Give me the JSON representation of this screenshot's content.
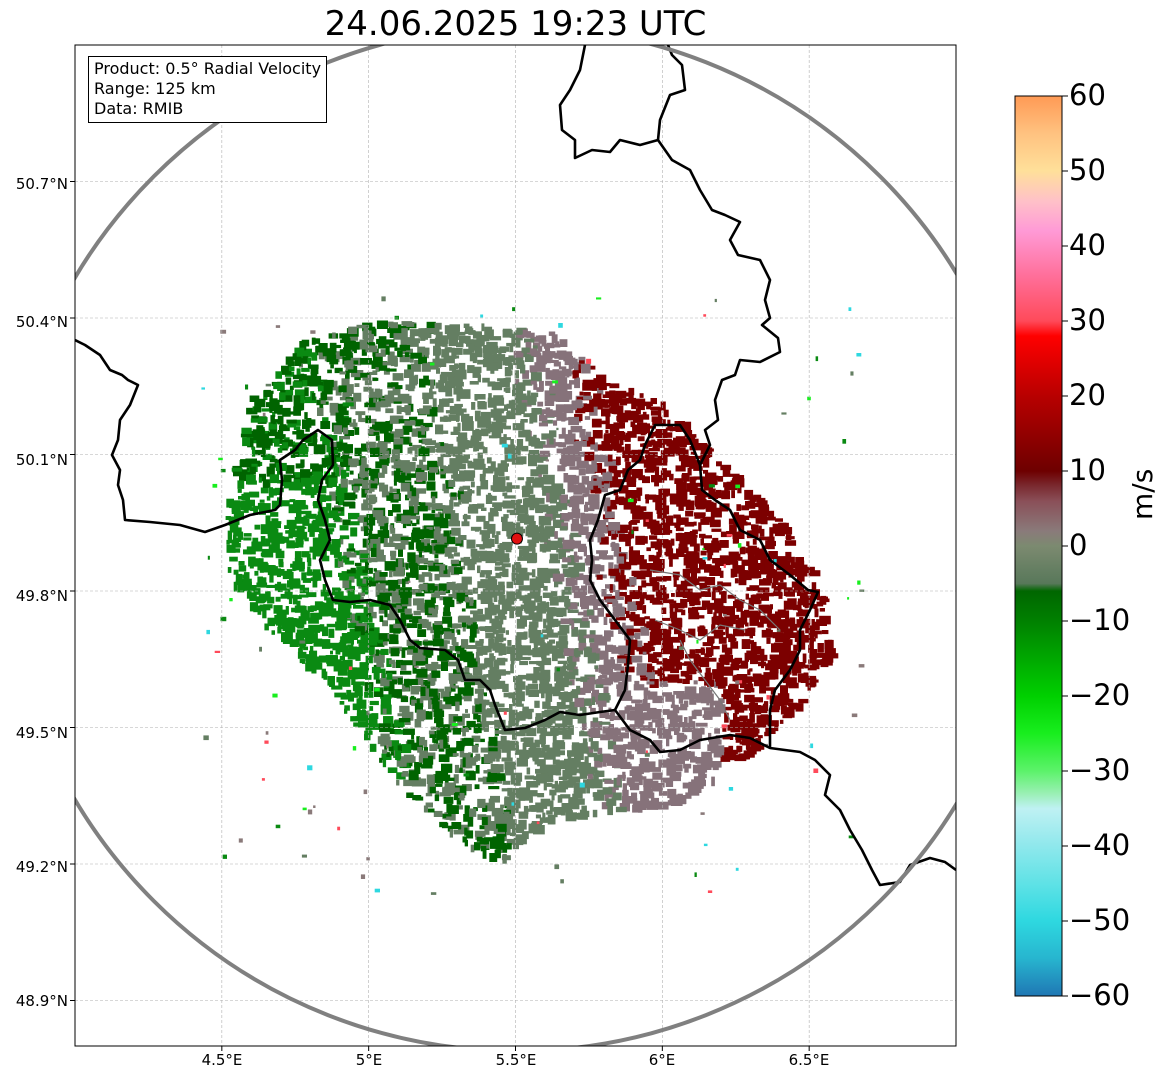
{
  "title": "24.06.2025 19:23 UTC",
  "info_box": {
    "product": "Product: 0.5° Radial Velocity",
    "range": "Range: 125 km",
    "data": "Data: RMIB"
  },
  "map": {
    "lon_range": [
      4.0,
      7.0
    ],
    "lat_range": [
      48.8,
      51.0
    ],
    "radar_site": {
      "lon": 5.505,
      "lat": 49.915
    },
    "range_ring_km": 125,
    "lat_ticks": [
      "50.7°N",
      "50.4°N",
      "50.1°N",
      "49.8°N",
      "49.5°N",
      "49.2°N",
      "48.9°N"
    ],
    "lon_ticks": [
      "4.5°E",
      "5°E",
      "5.5°E",
      "6°E",
      "6.5°E"
    ],
    "grid": true
  },
  "velocity_regions": [
    {
      "name": "inbound-strong",
      "color": "#0a8a12"
    },
    {
      "name": "inbound-weak",
      "color": "#006400"
    },
    {
      "name": "near-zero-inbound",
      "color": "#647e62"
    },
    {
      "name": "near-zero-outbound",
      "color": "#86727a"
    },
    {
      "name": "outbound",
      "color": "#7c0000"
    }
  ],
  "colorbar": {
    "label": "m/s",
    "ticks": [
      "60",
      "50",
      "40",
      "30",
      "20",
      "10",
      "0",
      "−10",
      "−20",
      "−30",
      "−40",
      "−50",
      "−60"
    ],
    "range": [
      -60,
      60
    ],
    "stops": [
      {
        "v": -60,
        "color": "#1f77b4"
      },
      {
        "v": -55,
        "color": "#27b5cf"
      },
      {
        "v": -50,
        "color": "#2ed8e0"
      },
      {
        "v": -45,
        "color": "#5fe2e6"
      },
      {
        "v": -40,
        "color": "#8fe8ec"
      },
      {
        "v": -35,
        "color": "#bff1f3"
      },
      {
        "v": -33,
        "color": "#9af0b4"
      },
      {
        "v": -30,
        "color": "#5cf26a"
      },
      {
        "v": -25,
        "color": "#18ee1e"
      },
      {
        "v": -20,
        "color": "#00d000"
      },
      {
        "v": -15,
        "color": "#00a800"
      },
      {
        "v": -10,
        "color": "#008000"
      },
      {
        "v": -6,
        "color": "#006600"
      },
      {
        "v": -5,
        "color": "#58785a"
      },
      {
        "v": 0,
        "color": "#7c8a70"
      },
      {
        "v": 2,
        "color": "#8a7a7a"
      },
      {
        "v": 6,
        "color": "#8a4f58"
      },
      {
        "v": 8,
        "color": "#7a2a30"
      },
      {
        "v": 10,
        "color": "#6e0000"
      },
      {
        "v": 20,
        "color": "#b80000"
      },
      {
        "v": 28,
        "color": "#ff0000"
      },
      {
        "v": 30,
        "color": "#ff4a5a"
      },
      {
        "v": 36,
        "color": "#ff6f9a"
      },
      {
        "v": 42,
        "color": "#ff9ad6"
      },
      {
        "v": 46,
        "color": "#ffc1c8"
      },
      {
        "v": 50,
        "color": "#ffe09a"
      },
      {
        "v": 55,
        "color": "#ffc280"
      },
      {
        "v": 60,
        "color": "#ff9a55"
      }
    ]
  }
}
